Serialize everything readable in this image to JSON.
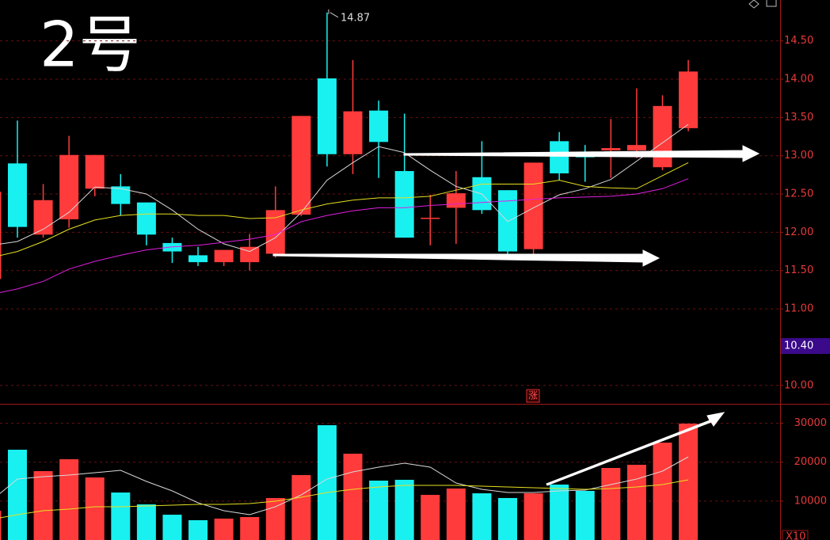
{
  "chart_data": [
    {
      "type": "candlestick",
      "title": "2号",
      "open": [
        11.39,
        12.9,
        11.97,
        12.17,
        12.57,
        12.6,
        12.39,
        11.86,
        11.7,
        11.61,
        11.61,
        11.72,
        12.23,
        14.01,
        13.02,
        13.59,
        12.8,
        12.18,
        12.32,
        12.72,
        12.55,
        11.78,
        13.19,
        13.02,
        13.07,
        13.07,
        12.85,
        13.36
      ],
      "high": [
        12.6,
        13.46,
        12.63,
        13.26,
        13.01,
        12.76,
        12.39,
        11.93,
        11.81,
        11.77,
        11.98,
        12.6,
        13.52,
        14.87,
        14.25,
        13.72,
        13.55,
        12.49,
        12.8,
        13.19,
        12.55,
        12.91,
        13.31,
        13.14,
        13.48,
        13.88,
        13.79,
        14.25
      ],
      "low": [
        11.35,
        11.93,
        11.93,
        12.06,
        12.47,
        12.22,
        11.83,
        11.6,
        11.56,
        11.56,
        11.5,
        11.67,
        12.21,
        12.86,
        12.76,
        12.71,
        11.93,
        11.83,
        11.85,
        12.24,
        11.72,
        11.72,
        12.68,
        12.66,
        12.71,
        12.97,
        12.81,
        13.32
      ],
      "close": [
        12.53,
        12.07,
        12.42,
        13.01,
        13.01,
        12.37,
        11.97,
        11.75,
        11.61,
        11.77,
        11.81,
        12.29,
        13.52,
        13.02,
        13.58,
        13.18,
        11.93,
        12.19,
        12.51,
        12.29,
        11.75,
        12.91,
        12.77,
        12.98,
        13.1,
        13.14,
        13.65,
        14.1
      ],
      "up_color": "#ff3b3b",
      "down_color": "#19f0f0",
      "series": [
        {
          "color": "#d8d8d8",
          "values": [
            11.83,
            11.88,
            12.04,
            12.26,
            12.59,
            12.57,
            12.5,
            12.29,
            12.04,
            11.85,
            11.75,
            11.93,
            12.26,
            12.68,
            12.91,
            13.12,
            13.04,
            12.81,
            12.6,
            12.5,
            12.14,
            12.32,
            12.49,
            12.57,
            12.69,
            12.93,
            13.17,
            13.41
          ]
        },
        {
          "color": "#e6e020",
          "values": [
            11.67,
            11.75,
            11.88,
            12.04,
            12.16,
            12.22,
            12.24,
            12.24,
            12.22,
            12.22,
            12.18,
            12.19,
            12.29,
            12.37,
            12.42,
            12.45,
            12.45,
            12.47,
            12.55,
            12.63,
            12.63,
            12.63,
            12.68,
            12.6,
            12.58,
            12.57,
            12.74,
            12.91
          ]
        },
        {
          "color": "#e020e0",
          "values": [
            11.19,
            11.26,
            11.36,
            11.52,
            11.62,
            11.7,
            11.77,
            11.81,
            11.83,
            11.87,
            11.91,
            11.97,
            12.14,
            12.22,
            12.28,
            12.32,
            12.32,
            12.35,
            12.37,
            12.39,
            12.41,
            12.43,
            12.45,
            12.46,
            12.47,
            12.5,
            12.57,
            12.7
          ]
        }
      ],
      "high_label": "14.87",
      "cursor_label": "10.40",
      "marker": "涨",
      "ylim": [
        9.76,
        15.034
      ],
      "yticks": [
        {
          "value": 10,
          "label": "10.00"
        },
        {
          "value": 11,
          "label": "11.00"
        },
        {
          "value": 11.5,
          "label": "11.50"
        },
        {
          "value": 12,
          "label": "12.00"
        },
        {
          "value": 12.5,
          "label": "12.50"
        },
        {
          "value": 13,
          "label": "13.00"
        },
        {
          "value": 13.5,
          "label": "13.50"
        },
        {
          "value": 14,
          "label": "14.00"
        },
        {
          "value": 14.5,
          "label": "14.50"
        }
      ],
      "grid": true
    },
    {
      "type": "bar",
      "values": [
        7500,
        23200,
        17700,
        20760,
        16080,
        12200,
        9160,
        6500,
        5090,
        5500,
        5900,
        10790,
        16690,
        29500,
        22180,
        15260,
        15470,
        11600,
        13230,
        12000,
        10790,
        12000,
        14250,
        12620,
        18520,
        19330,
        25030,
        29910
      ],
      "series": [
        {
          "color": "#d8d8d8",
          "values": [
            10180,
            15670,
            16280,
            16690,
            17300,
            17910,
            15060,
            12620,
            9560,
            7530,
            6510,
            8550,
            11600,
            15670,
            17500,
            18720,
            19740,
            18720,
            14650,
            13020,
            12210,
            12210,
            12620,
            12820,
            14250,
            15670,
            17700,
            21370
          ]
        },
        {
          "color": "#e6e020",
          "values": [
            5290,
            6510,
            7530,
            7940,
            8550,
            8550,
            8750,
            8950,
            9160,
            9160,
            9360,
            9970,
            10990,
            12210,
            13020,
            13630,
            14040,
            14040,
            14040,
            13840,
            13630,
            13430,
            13230,
            13020,
            13230,
            13630,
            14250,
            15470
          ]
        }
      ],
      "axis_note": "X10",
      "ylim": [
        0,
        35000
      ],
      "yticks": [
        10000,
        20000,
        30000
      ],
      "grid": true
    }
  ]
}
